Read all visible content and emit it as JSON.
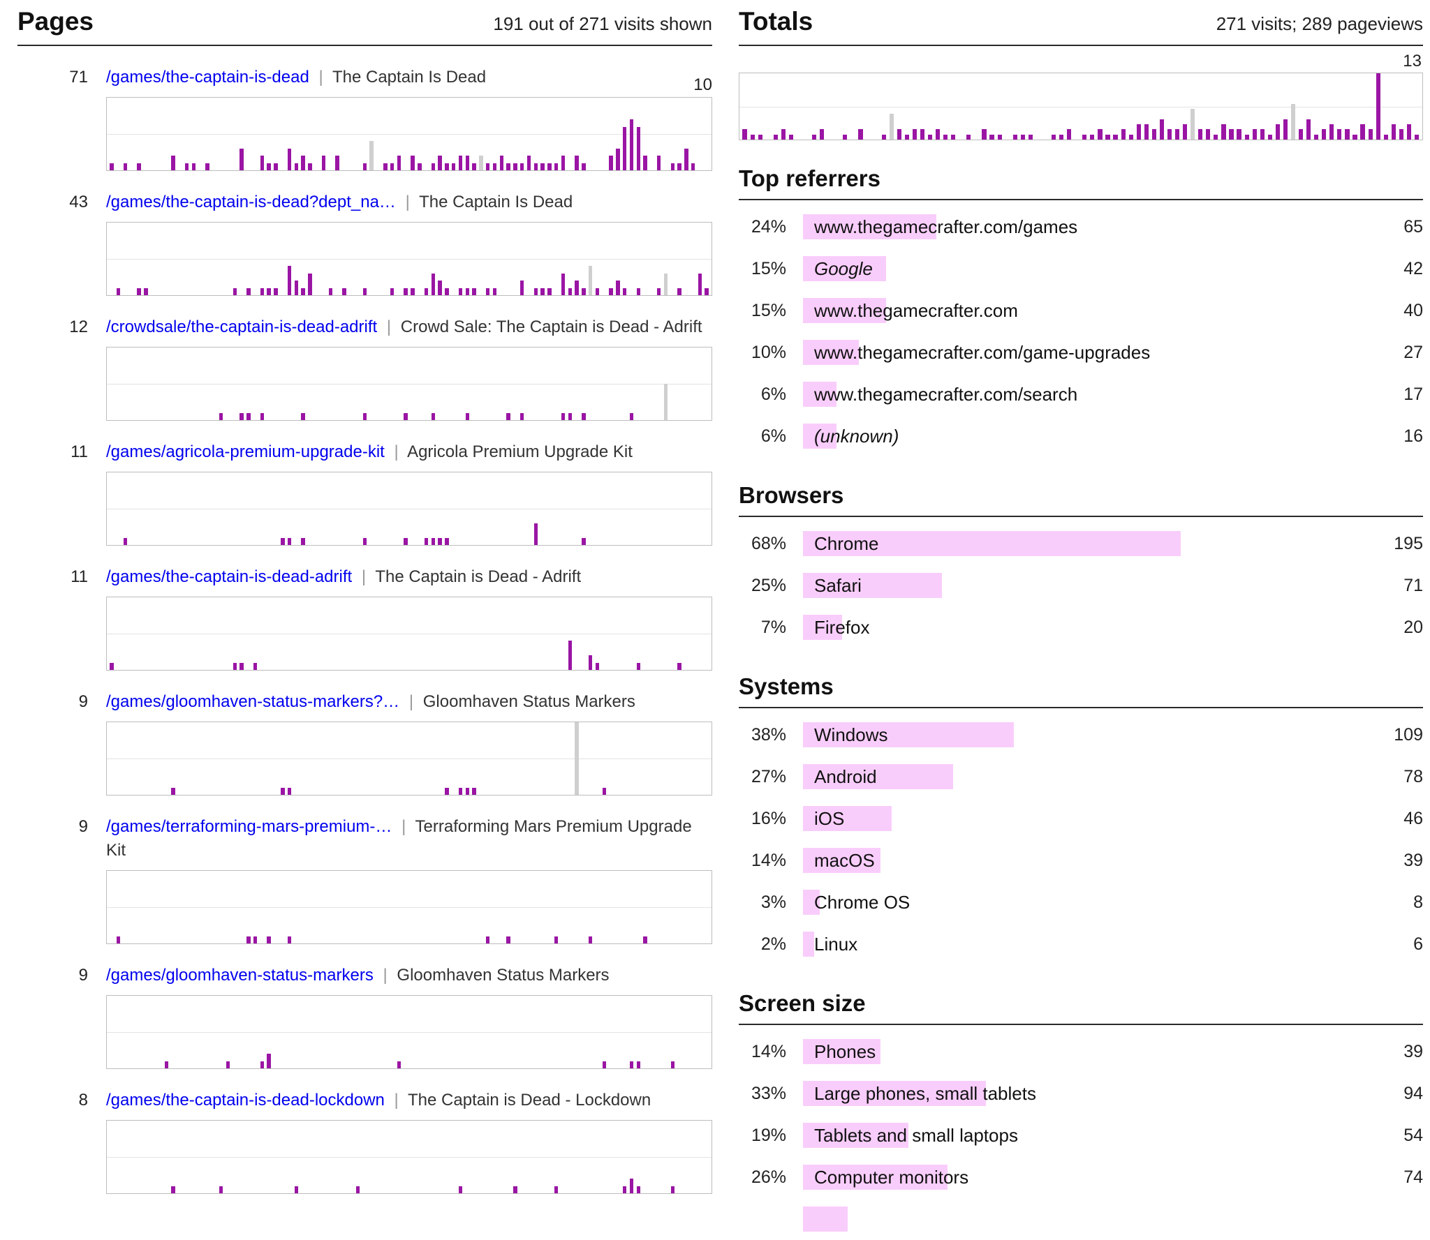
{
  "colors": {
    "bar_purple": "#9a15a4",
    "bar_pink": "#f9cdfb",
    "bar_grey": "#cfcfcf",
    "link_blue": "#0000ee"
  },
  "pages": {
    "title": "Pages",
    "summary": "191 out of 271 visits shown",
    "separator": "|",
    "scale_label": "10",
    "scale_max": 10,
    "entries": [
      {
        "count": "71",
        "path": "/games/the-captain-is-dead",
        "title": "The Captain Is Dead",
        "spark": "1010100002011010000300211031210202000110112021012112211112111211112021000236762020113100",
        "grey": {
          "38": 4,
          "54": 2
        }
      },
      {
        "count": "43",
        "path": "/games/the-captain-is-dead?dept_na…",
        "title": "The Captain Is Dead",
        "spark": "0100110000000000001010111042130010100100010110132101110110002011103121110121010010010031",
        "grey": {
          "70": 4,
          "81": 3
        }
      },
      {
        "count": "12",
        "path": "/crowdsale/the-captain-is-dead-adrift",
        "title": "Crowd Sale: The Captain is Dead - Adrift",
        "spark": "0000000000000000100110100000100000000100000100010000100000101000001101000000100000000000",
        "grey": {
          "81": 5
        }
      },
      {
        "count": "11",
        "path": "/games/agricola-premium-upgrade-kit",
        "title": "Agricola Premium Upgrade Kit",
        "spark": "0010000000000000000000000110100000000100000100111100000000000030000001000000000000000000",
        "grey": {}
      },
      {
        "count": "11",
        "path": "/games/the-captain-is-dead-adrift",
        "title": "The Captain is Dead - Adrift",
        "spark": "1000000000000000001101000000000000000000000000000000000000000000000400210000010000010000",
        "grey": {}
      },
      {
        "count": "9",
        "path": "/games/gloomhaven-status-markers?…",
        "title": "Gloomhaven Status Markers",
        "spark": "0000000001000000000000000110000000000000000000000101110000000000000000001000000000000000",
        "grey": {
          "68": 10
        }
      },
      {
        "count": "9",
        "path": "/games/terraforming-mars-premium-…",
        "title": "Terraforming Mars Premium Upgrade Kit",
        "spark": "0100000000000000000011010010000000000000000000000000000100100000010000100000001000000000",
        "grey": {}
      },
      {
        "count": "9",
        "path": "/games/gloomhaven-status-markers",
        "title": "Gloomhaven Status Markers",
        "spark": "0000000010000000010000120000000000000000001000000000000000000000000000001000110000100000",
        "grey": {}
      },
      {
        "count": "8",
        "path": "/games/the-captain-is-dead-lockdown",
        "title": "The Captain is Dead - Lockdown",
        "spark": "0000000001000000100000000001000000001000000000000001000000010000010000000001210000100000",
        "grey": {}
      }
    ]
  },
  "totals": {
    "title": "Totals",
    "summary": "271 visits; 289 pageviews",
    "scale_label": "13",
    "scale_max": 13,
    "spark": "2110121001200102001321221211010211011100112011211213324223122132212213412412322132d13231",
    "grey": {
      "19": 5,
      "58": 6,
      "71": 7
    }
  },
  "sections": [
    {
      "title": "Top referrers",
      "rows": [
        {
          "pct": 24,
          "pct_label": "24%",
          "label": "www.thegamecrafter.com/games",
          "count": "65",
          "italic": false
        },
        {
          "pct": 15,
          "pct_label": "15%",
          "label": "Google",
          "count": "42",
          "italic": true
        },
        {
          "pct": 15,
          "pct_label": "15%",
          "label": "www.thegamecrafter.com",
          "count": "40",
          "italic": false
        },
        {
          "pct": 10,
          "pct_label": "10%",
          "label": "www.thegamecrafter.com/game-upgrades",
          "count": "27",
          "italic": false
        },
        {
          "pct": 6,
          "pct_label": "6%",
          "label": "www.thegamecrafter.com/search",
          "count": "17",
          "italic": false
        },
        {
          "pct": 6,
          "pct_label": "6%",
          "label": "(unknown)",
          "count": "16",
          "italic": true
        }
      ]
    },
    {
      "title": "Browsers",
      "rows": [
        {
          "pct": 68,
          "pct_label": "68%",
          "label": "Chrome",
          "count": "195",
          "italic": false
        },
        {
          "pct": 25,
          "pct_label": "25%",
          "label": "Safari",
          "count": "71",
          "italic": false
        },
        {
          "pct": 7,
          "pct_label": "7%",
          "label": "Firefox",
          "count": "20",
          "italic": false
        }
      ]
    },
    {
      "title": "Systems",
      "rows": [
        {
          "pct": 38,
          "pct_label": "38%",
          "label": "Windows",
          "count": "109",
          "italic": false
        },
        {
          "pct": 27,
          "pct_label": "27%",
          "label": "Android",
          "count": "78",
          "italic": false
        },
        {
          "pct": 16,
          "pct_label": "16%",
          "label": "iOS",
          "count": "46",
          "italic": false
        },
        {
          "pct": 14,
          "pct_label": "14%",
          "label": "macOS",
          "count": "39",
          "italic": false
        },
        {
          "pct": 3,
          "pct_label": "3%",
          "label": "Chrome OS",
          "count": "8",
          "italic": false
        },
        {
          "pct": 2,
          "pct_label": "2%",
          "label": "Linux",
          "count": "6",
          "italic": false
        }
      ]
    },
    {
      "title": "Screen size",
      "rows": [
        {
          "pct": 14,
          "pct_label": "14%",
          "label": "Phones",
          "count": "39",
          "italic": false
        },
        {
          "pct": 33,
          "pct_label": "33%",
          "label": "Large phones, small tablets",
          "count": "94",
          "italic": false
        },
        {
          "pct": 19,
          "pct_label": "19%",
          "label": "Tablets and small laptops",
          "count": "54",
          "italic": false
        },
        {
          "pct": 26,
          "pct_label": "26%",
          "label": "Computer monitors",
          "count": "74",
          "italic": false
        },
        {
          "pct": 8,
          "pct_label": "",
          "label": "",
          "count": "",
          "italic": false
        }
      ]
    }
  ]
}
